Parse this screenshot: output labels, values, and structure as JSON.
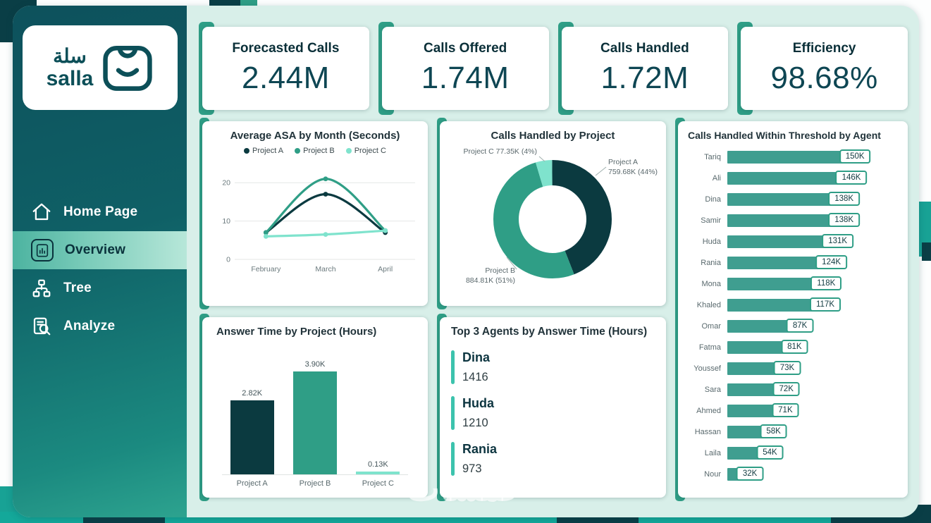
{
  "brand": {
    "name": "salla",
    "arabic": "سلة"
  },
  "sidebar": {
    "items": [
      {
        "label": "Home Page",
        "icon": "home-icon",
        "active": false
      },
      {
        "label": "Overview",
        "icon": "overview-icon",
        "active": true
      },
      {
        "label": "Tree",
        "icon": "tree-icon",
        "active": false
      },
      {
        "label": "Analyze",
        "icon": "analyze-icon",
        "active": false
      }
    ]
  },
  "kpis": [
    {
      "label": "Forecasted Calls",
      "value": "2.44M"
    },
    {
      "label": "Calls Offered",
      "value": "1.74M"
    },
    {
      "label": "Calls Handled",
      "value": "1.72M"
    },
    {
      "label": "Efficiency",
      "value": "98.68%"
    }
  ],
  "watermark": {
    "text": "خمسات"
  },
  "theme": {
    "dark": "#0b3a40",
    "teal": "#2f9e86",
    "mint": "#7fe3cd",
    "agent_bar": "#3f9e90",
    "sidebar_dark": "#0d515c",
    "background": "#d8efe9"
  },
  "chart_data": [
    {
      "id": "asa_by_month",
      "type": "line",
      "title": "Average ASA by Month (Seconds)",
      "x": [
        "February",
        "March",
        "April"
      ],
      "series": [
        {
          "name": "Project A",
          "color": "#0b3a40",
          "values": [
            7,
            17,
            7
          ]
        },
        {
          "name": "Project B",
          "color": "#2f9e86",
          "values": [
            7,
            21,
            7.5
          ]
        },
        {
          "name": "Project C",
          "color": "#7fe3cd",
          "values": [
            6,
            6.5,
            7.5
          ]
        }
      ],
      "ylim": [
        0,
        25
      ],
      "yticks": [
        0,
        10,
        20
      ],
      "legend_position": "top",
      "grid": true
    },
    {
      "id": "calls_handled_by_project",
      "type": "pie",
      "title": "Calls Handled by Project",
      "slices": [
        {
          "name": "Project A",
          "value": 759680,
          "label": "759.68K",
          "pct": "44%",
          "color": "#0b3a40"
        },
        {
          "name": "Project B",
          "value": 884810,
          "label": "884.81K",
          "pct": "51%",
          "color": "#2f9e86"
        },
        {
          "name": "Project C",
          "value": 77350,
          "label": "77.35K",
          "pct": "4%",
          "color": "#7fe3cd"
        }
      ]
    },
    {
      "id": "threshold_by_agent",
      "type": "bar",
      "orientation": "horizontal",
      "title": "Calls Handled Within Threshold by Agent",
      "categories": [
        "Tariq",
        "Ali",
        "Dina",
        "Samir",
        "Huda",
        "Rania",
        "Mona",
        "Khaled",
        "Omar",
        "Fatma",
        "Youssef",
        "Sara",
        "Ahmed",
        "Hassan",
        "Laila",
        "Nour"
      ],
      "values": [
        150,
        146,
        138,
        138,
        131,
        124,
        118,
        117,
        87,
        81,
        73,
        72,
        71,
        58,
        54,
        32
      ],
      "value_labels": [
        "150K",
        "146K",
        "138K",
        "138K",
        "131K",
        "124K",
        "118K",
        "117K",
        "87K",
        "81K",
        "73K",
        "72K",
        "71K",
        "58K",
        "54K",
        "32K"
      ],
      "unit": "K",
      "xmax": 150,
      "bar_color": "#3f9e90"
    },
    {
      "id": "answer_time_by_project",
      "type": "bar",
      "orientation": "vertical",
      "title": "Answer Time by Project (Hours)",
      "categories": [
        "Project A",
        "Project B",
        "Project C"
      ],
      "values": [
        2.82,
        3.9,
        0.13
      ],
      "value_labels": [
        "2.82K",
        "3.90K",
        "0.13K"
      ],
      "colors": [
        "#0b3a40",
        "#2f9e86",
        "#7fe3cd"
      ],
      "ylim": [
        0,
        4.2
      ]
    },
    {
      "id": "top3_agents",
      "type": "table",
      "title": "Top 3 Agents by Answer Time (Hours)",
      "rows": [
        {
          "name": "Dina",
          "value": "1416"
        },
        {
          "name": "Huda",
          "value": "1210"
        },
        {
          "name": "Rania",
          "value": "973"
        }
      ]
    }
  ]
}
